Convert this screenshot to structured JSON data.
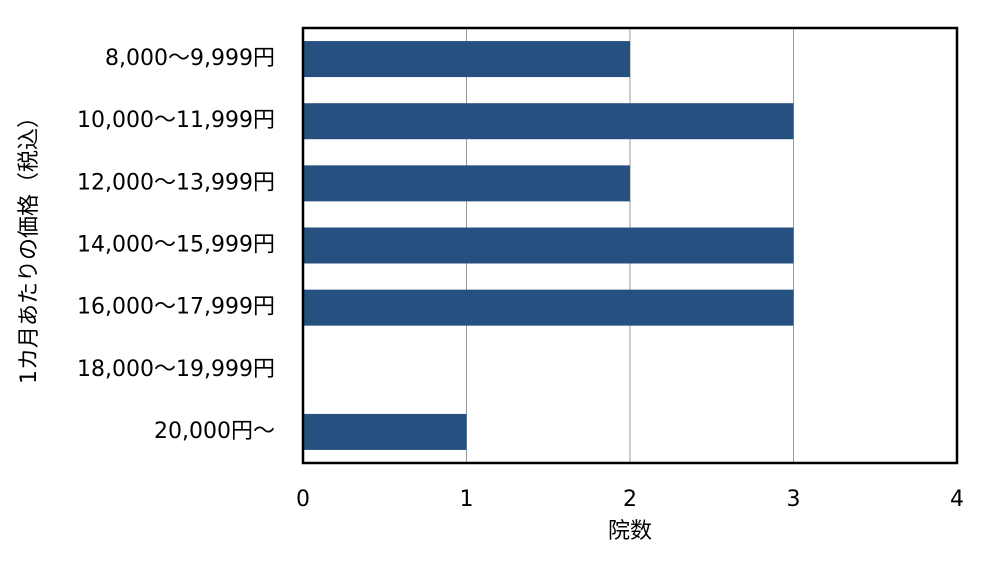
{
  "chart_data": {
    "type": "bar",
    "orientation": "horizontal",
    "categories": [
      "8,000～9,999円",
      "10,000～11,999円",
      "12,000～13,999円",
      "14,000～15,999円",
      "16,000～17,999円",
      "18,000～19,999円",
      "20,000円～"
    ],
    "values": [
      2,
      3,
      2,
      3,
      3,
      0,
      1
    ],
    "color": "#25507f",
    "xlabel": "院数",
    "ylabel": "1カ月あたりの価格（税込）",
    "xlim": [
      0,
      4
    ],
    "xticks": [
      0,
      1,
      2,
      3,
      4
    ],
    "grid": true
  }
}
